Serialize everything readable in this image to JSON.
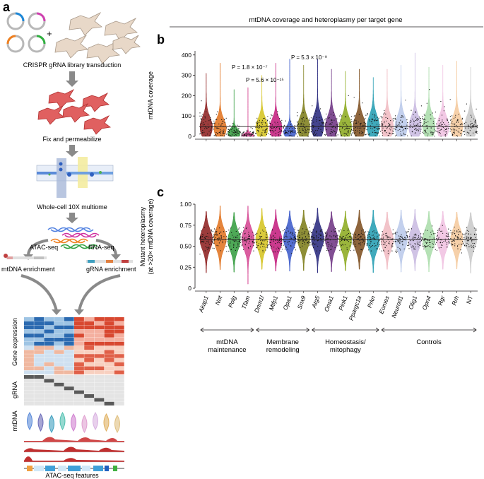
{
  "panel_labels": {
    "a": "a",
    "b": "b",
    "c": "c"
  },
  "panel_a": {
    "plus": "+",
    "step1": "CRISPR gRNA library transduction",
    "step2": "Fix and permeabilize",
    "step3": "Whole-cell 10X multiome",
    "atac_seq": "ATAC-seq",
    "rna_seq": "RNA-seq",
    "mtdna_enrichment": "mtDNA enrichment",
    "grna_enrichment": "gRNA enrichment",
    "gene_expression": "Gene expression",
    "grna": "gRNA",
    "mtdna": "mtDNA",
    "atac_features": "ATAC-seq features"
  },
  "figure_title": "mtDNA coverage and heteroplasmy per target gene",
  "chart_data": [
    {
      "type": "violin",
      "panel": "b",
      "ylabel": "mtDNA coverage",
      "ylim": [
        0,
        420
      ],
      "yticks": [
        0,
        100,
        200,
        300,
        400
      ],
      "reference_line": 48,
      "categories": [
        "Akap1",
        "Nnt",
        "Polg",
        "Tfam",
        "Dnm1l",
        "Mtfp1",
        "Opa1",
        "Snx9",
        "Atg5",
        "Oma1",
        "Pink1",
        "Ppargc1a",
        "Prkn",
        "Eomes",
        "Neurod1",
        "Olig1",
        "Opn4",
        "Rgr",
        "Rrh",
        "NT"
      ],
      "medians": [
        45,
        40,
        15,
        3,
        42,
        40,
        20,
        45,
        50,
        48,
        45,
        48,
        50,
        48,
        48,
        47,
        50,
        47,
        48,
        48
      ],
      "whisker_max": [
        310,
        360,
        230,
        240,
        300,
        360,
        380,
        350,
        380,
        330,
        320,
        330,
        290,
        330,
        350,
        410,
        340,
        350,
        370,
        340
      ],
      "annotations": [
        {
          "text": "P = 1.8 × 10⁻⁷",
          "category": "Polg"
        },
        {
          "text": "P = 5.6 × 10⁻¹⁵",
          "category": "Tfam"
        },
        {
          "text": "P = 5.3 × 10⁻⁹",
          "category": "Opa1"
        }
      ],
      "colors": [
        "#8b1a1a",
        "#e0701a",
        "#2f9a3a",
        "#d43f8e",
        "#d4c21a",
        "#c2187a",
        "#3656c8",
        "#7a7a14",
        "#23237a",
        "#6b2f80",
        "#8aa81a",
        "#7a4a1a",
        "#1f9bb0",
        "#f0b8c0",
        "#b8c8ea",
        "#c8b8e0",
        "#a8dca8",
        "#f0c0e0",
        "#f4c89a",
        "#c8c8c8"
      ]
    },
    {
      "type": "violin",
      "panel": "c",
      "ylabel": "Mutant heteroplasmy (at >20× mtDNA coverage)",
      "ylim": [
        0,
        1.0
      ],
      "yticks": [
        "0",
        "0.25",
        "0.50",
        "0.75",
        "1.00"
      ],
      "reference_line": 0.58,
      "categories": [
        "Akap1",
        "Nnt",
        "Polg",
        "Tfam",
        "Dnm1l",
        "Mtfp1",
        "Opa1",
        "Snx9",
        "Atg5",
        "Oma1",
        "Pink1",
        "Ppargc1a",
        "Prkn",
        "Eomes",
        "Neurod1",
        "Olig1",
        "Opn4",
        "Rgr",
        "Rrh",
        "NT"
      ],
      "medians": [
        0.58,
        0.59,
        0.57,
        0.58,
        0.58,
        0.57,
        0.59,
        0.59,
        0.59,
        0.58,
        0.57,
        0.58,
        0.57,
        0.57,
        0.58,
        0.58,
        0.58,
        0.58,
        0.58,
        0.59
      ],
      "groups": [
        {
          "label": "mtDNA maintenance",
          "from": "Akap1",
          "to": "Tfam"
        },
        {
          "label": "Membrane remodeling",
          "from": "Dnm1l",
          "to": "Snx9"
        },
        {
          "label": "Homeostasis/ mitophagy",
          "from": "Atg5",
          "to": "Prkn"
        },
        {
          "label": "Controls",
          "from": "Eomes",
          "to": "NT"
        }
      ]
    }
  ]
}
